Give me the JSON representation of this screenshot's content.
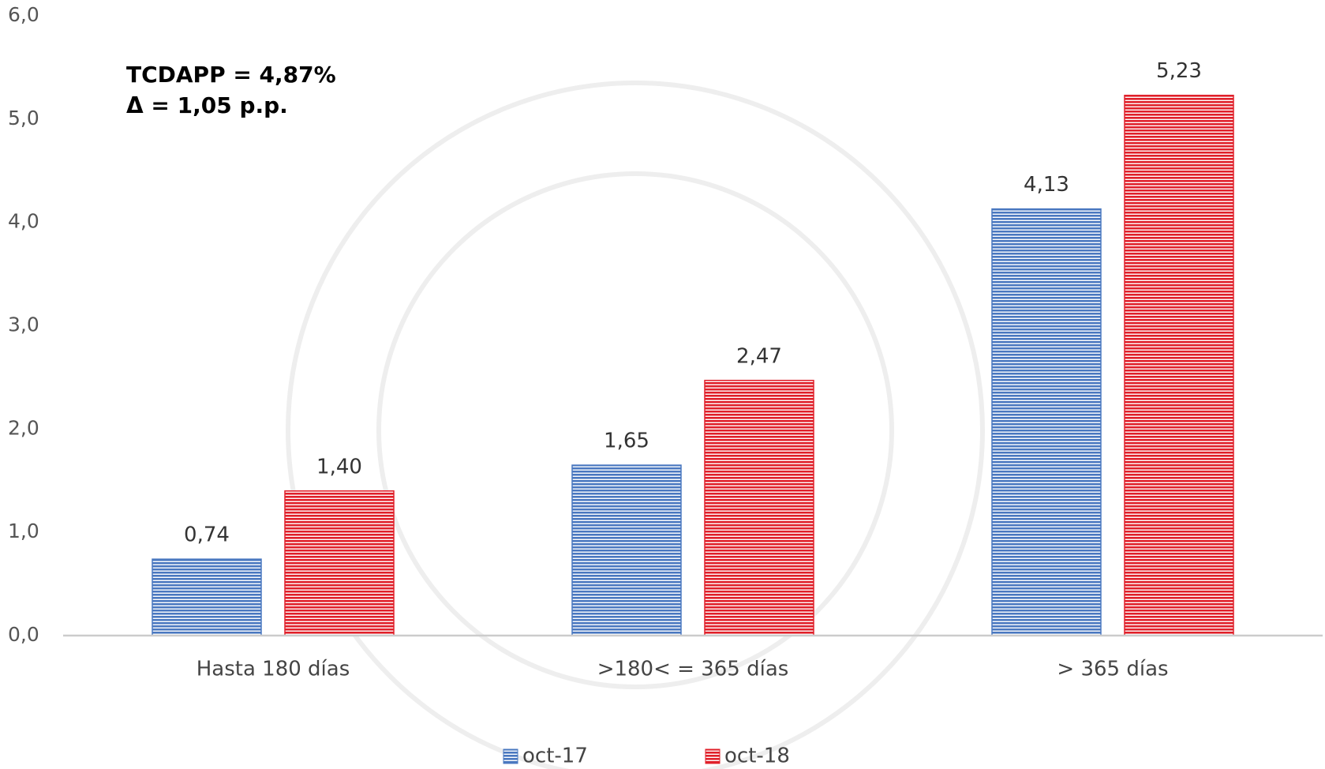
{
  "chart_data": {
    "type": "bar",
    "annotations": [
      "TCDAPP = 4,87%",
      "Δ  = 1,05 p.p."
    ],
    "categories": [
      "Hasta 180 días",
      ">180< = 365 días",
      "> 365 días"
    ],
    "series": [
      {
        "name": "oct-17",
        "color": "#4a78c0",
        "values": [
          0.74,
          1.65,
          4.13
        ],
        "value_labels": [
          "0,74",
          "1,65",
          "4,13"
        ]
      },
      {
        "name": "oct-18",
        "color": "#e0202a",
        "values": [
          1.4,
          2.47,
          5.23
        ],
        "value_labels": [
          "1,40",
          "2,47",
          "5,23"
        ]
      }
    ],
    "ylim": [
      0,
      6
    ],
    "yticks": [
      {
        "value": 0,
        "label": "0,0"
      },
      {
        "value": 1,
        "label": "1,0"
      },
      {
        "value": 2,
        "label": "2,0"
      },
      {
        "value": 3,
        "label": "3,0"
      },
      {
        "value": 4,
        "label": "4,0"
      },
      {
        "value": 5,
        "label": "5,0"
      },
      {
        "value": 6,
        "label": "6,0"
      }
    ],
    "grid": false,
    "legend": "bottom"
  }
}
